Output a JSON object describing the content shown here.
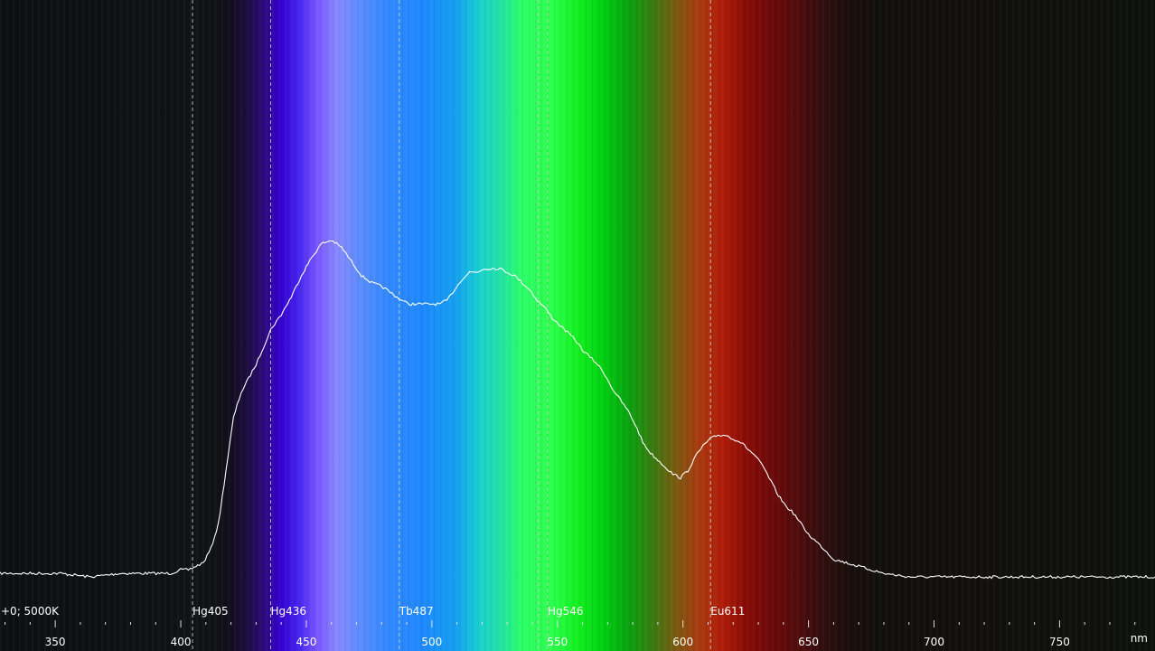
{
  "chart_data": {
    "type": "line",
    "title": "",
    "status_text": "+0; 5000K",
    "unit_label": "nm",
    "x_range": [
      328,
      788
    ],
    "y_range": [
      0,
      1
    ],
    "x_major_ticks": [
      350,
      400,
      450,
      500,
      550,
      600,
      650,
      700,
      750
    ],
    "x_tick_labels": [
      "350",
      "400",
      "450",
      "500",
      "550",
      "600",
      "650",
      "700",
      "750"
    ],
    "x_minor_step": 10,
    "reference_lines": [
      {
        "label": "Hg405",
        "x": 404.7,
        "show_label": true
      },
      {
        "label": "Hg436",
        "x": 435.8,
        "show_label": true
      },
      {
        "label": "Tb487",
        "x": 487.0,
        "show_label": true
      },
      {
        "label": "",
        "x": 542.4,
        "show_label": false
      },
      {
        "label": "Hg546",
        "x": 546.1,
        "show_label": true
      },
      {
        "label": "Eu611",
        "x": 611.0,
        "show_label": true
      }
    ],
    "series": [
      {
        "color": "#ffffff",
        "x": [
          328,
          340,
          352,
          364,
          376,
          388,
          396,
          400,
          403,
          406,
          409,
          412,
          415,
          418,
          421,
          424,
          427,
          430,
          433,
          436,
          440,
          444,
          448,
          452,
          456,
          460,
          464,
          468,
          472,
          476,
          480,
          484,
          488,
          491,
          494,
          497,
          500,
          503,
          506,
          509,
          512,
          515,
          518,
          521,
          524,
          527,
          530,
          533,
          536,
          539,
          542,
          545,
          548,
          551,
          554,
          557,
          560,
          563,
          566,
          569,
          572,
          575,
          578,
          581,
          584,
          587,
          590,
          593,
          596,
          599,
          602,
          605,
          608,
          611,
          614,
          617,
          620,
          623,
          626,
          629,
          632,
          635,
          638,
          641,
          644,
          647,
          650,
          653,
          656,
          660,
          670,
          680,
          690,
          700,
          710,
          720,
          730,
          740,
          750,
          760,
          770,
          780,
          788
        ],
        "y": [
          0.02,
          0.02,
          0.02,
          0.01,
          0.02,
          0.02,
          0.02,
          0.03,
          0.03,
          0.04,
          0.05,
          0.09,
          0.16,
          0.31,
          0.46,
          0.53,
          0.57,
          0.61,
          0.66,
          0.71,
          0.75,
          0.8,
          0.86,
          0.91,
          0.95,
          0.96,
          0.94,
          0.9,
          0.86,
          0.84,
          0.83,
          0.81,
          0.79,
          0.78,
          0.78,
          0.78,
          0.78,
          0.78,
          0.79,
          0.82,
          0.85,
          0.87,
          0.87,
          0.88,
          0.88,
          0.88,
          0.87,
          0.86,
          0.84,
          0.82,
          0.79,
          0.77,
          0.74,
          0.72,
          0.7,
          0.68,
          0.65,
          0.63,
          0.61,
          0.58,
          0.54,
          0.51,
          0.48,
          0.44,
          0.39,
          0.36,
          0.34,
          0.32,
          0.3,
          0.29,
          0.31,
          0.35,
          0.38,
          0.4,
          0.41,
          0.41,
          0.4,
          0.39,
          0.37,
          0.35,
          0.32,
          0.28,
          0.24,
          0.21,
          0.19,
          0.16,
          0.13,
          0.11,
          0.09,
          0.06,
          0.04,
          0.02,
          0.01,
          0.01,
          0.01,
          0.01,
          0.01,
          0.01,
          0.01,
          0.01,
          0.01,
          0.01,
          0.01
        ],
        "y_offsets_unused": true
      }
    ],
    "background": "visible-spectrum gradient from ~400 nm to ~660 nm",
    "colors": {
      "background": "#0d0f10",
      "curve": "#ffffff",
      "reference_line": "#cccccc",
      "text": "#ffffff"
    }
  }
}
